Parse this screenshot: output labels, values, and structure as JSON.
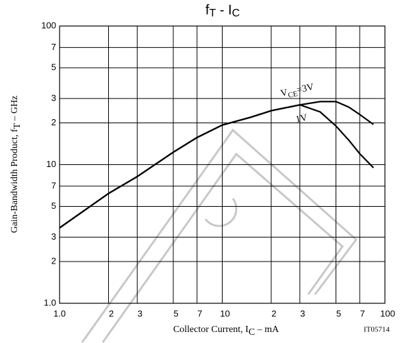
{
  "chart_data": {
    "type": "line",
    "title_parts": [
      "f",
      "T",
      " - I",
      "C"
    ],
    "ylabel_parts": [
      "Gain-Bandwidth Product, f",
      "T",
      " – GHz"
    ],
    "xlabel_parts": [
      "Collector Current, I",
      "C",
      " – mA"
    ],
    "figure_id": "IT05714",
    "log_x": true,
    "log_y": true,
    "grid": true,
    "xlim": [
      1,
      100
    ],
    "ylim": [
      1,
      100
    ],
    "xticks": [
      {
        "value": 1,
        "label": "1.0"
      },
      2,
      3,
      5,
      7,
      10,
      {
        "value": 20,
        "label": "2"
      },
      {
        "value": 30,
        "label": "3"
      },
      {
        "value": 50,
        "label": "5"
      },
      {
        "value": 70,
        "label": "7"
      },
      100
    ],
    "yticks": [
      {
        "value": 1,
        "label": "1.0"
      },
      2,
      3,
      5,
      7,
      10,
      {
        "value": 20,
        "label": "2"
      },
      {
        "value": 30,
        "label": "3"
      },
      {
        "value": 50,
        "label": "5"
      },
      {
        "value": 70,
        "label": "7"
      },
      100
    ],
    "x": [
      1,
      2,
      3,
      5,
      7,
      10,
      15,
      20,
      30,
      40,
      50,
      60,
      70,
      85
    ],
    "series": [
      {
        "label_parts": [
          "V",
          "CE",
          "=3V"
        ],
        "color": "#000000",
        "values": [
          3.5,
          6.2,
          8.2,
          12.3,
          15.7,
          19.3,
          22,
          24.5,
          27,
          28.5,
          28.5,
          26,
          23,
          19.5
        ]
      },
      {
        "label_parts": [
          "1V"
        ],
        "color": "#000000",
        "values": [
          3.5,
          6.2,
          8.2,
          12.3,
          15.7,
          19.3,
          22,
          24.5,
          27,
          24,
          19,
          15,
          12,
          9.5
        ]
      }
    ]
  }
}
